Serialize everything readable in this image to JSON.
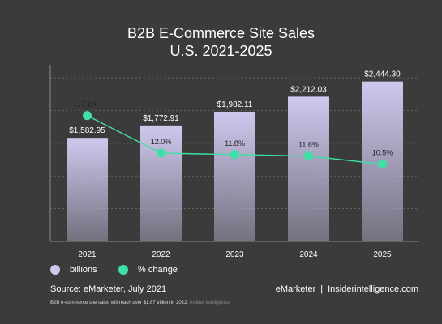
{
  "title": "B2B E-Commerce Site Sales",
  "subtitle": "U.S. 2021-2025",
  "chart_data": {
    "type": "bar",
    "categories": [
      "2021",
      "2022",
      "2023",
      "2024",
      "2025"
    ],
    "series": [
      {
        "name": "billions",
        "type": "bar",
        "values": [
          1582.95,
          1772.91,
          1982.11,
          2212.03,
          2444.3
        ],
        "labels": [
          "$1,582.95",
          "$1,772.91",
          "$1,982.11",
          "$2,212.03",
          "$2,444.30"
        ]
      },
      {
        "name": "% change",
        "type": "line",
        "values": [
          17.1,
          12.0,
          11.8,
          11.6,
          10.5
        ],
        "labels": [
          "17.1%",
          "12.0%",
          "11.8%",
          "11.6%",
          "10.5%"
        ]
      }
    ],
    "ylim": [
      0,
      2700
    ],
    "change_ylim": [
      0,
      24
    ],
    "grid": true,
    "legend_position": "bottom-left",
    "colors": {
      "bar": "#cfc8ee",
      "line": "#3fe0a6",
      "grid": "#6e6e6e",
      "background": "#3b3b3b"
    }
  },
  "legend": {
    "billions": "billions",
    "change": "% change"
  },
  "footer": {
    "source": "Source: eMarketer, July 2021",
    "brand_left": "eMarketer",
    "brand_sep": "|",
    "brand_right": "Insiderintelligence.com",
    "note": "B2B e-commerce site sales will reach over $1.67 trillion in 2022.",
    "note_brand": "Insider Intelligence"
  }
}
